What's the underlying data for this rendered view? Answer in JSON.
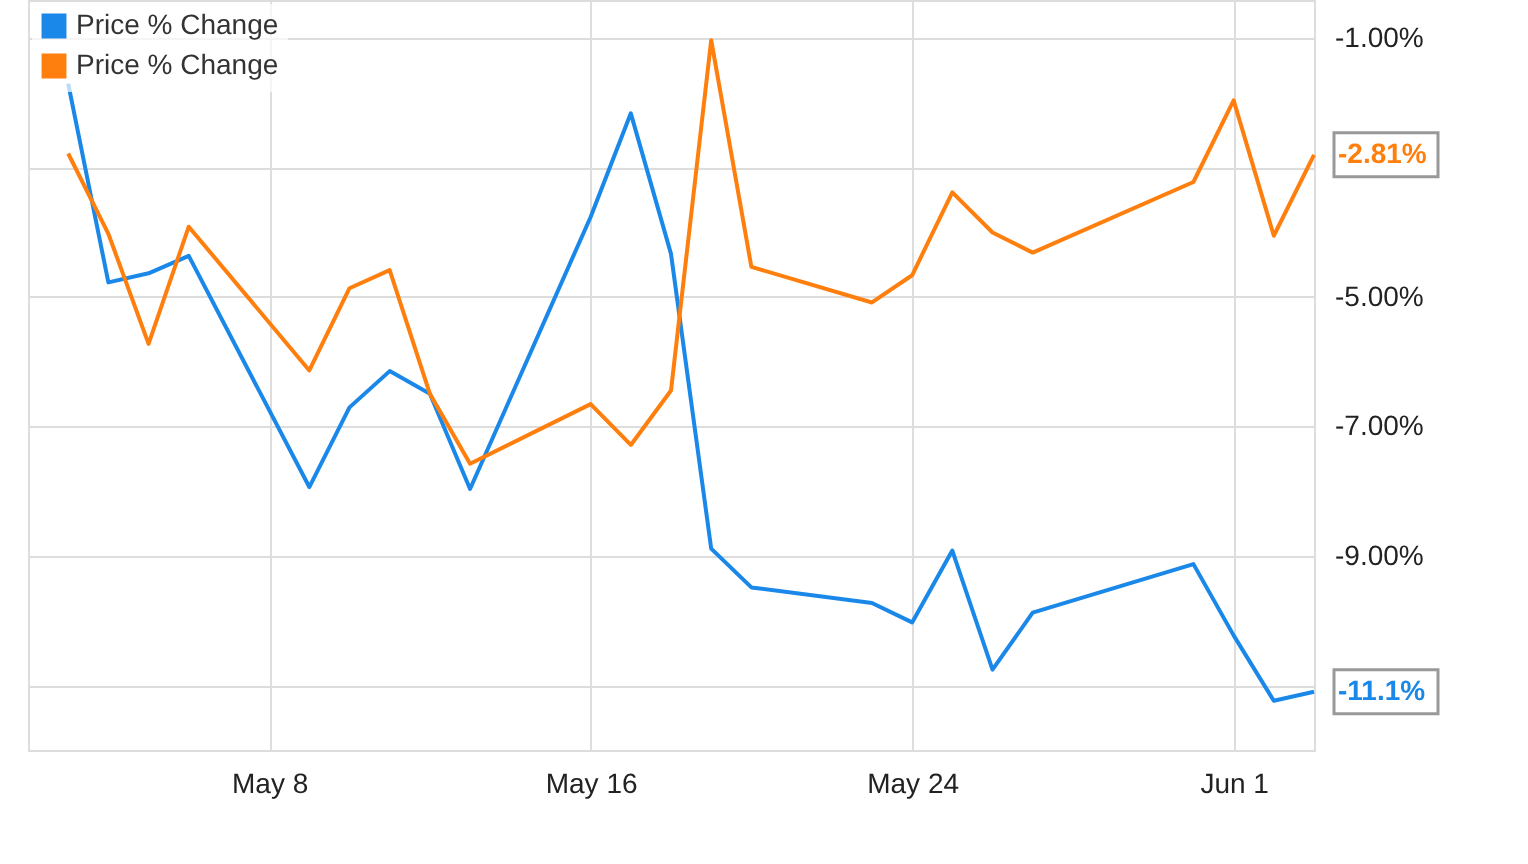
{
  "chart_data": {
    "type": "line",
    "x": [
      "--05-03",
      "--05-04",
      "--05-05",
      "--05-06",
      "--05-09",
      "--05-10",
      "--05-11",
      "--05-12",
      "--05-13",
      "--05-16",
      "--05-17",
      "--05-18",
      "--05-19",
      "--05-20",
      "--05-23",
      "--05-24",
      "--05-25",
      "--05-26",
      "--05-27",
      "--05-31",
      "--06-01",
      "--06-02",
      "--06-03"
    ],
    "series": [
      {
        "name": "Price % Change",
        "color": "#1a88e8",
        "values": [
          -1.71,
          -4.78,
          -4.64,
          -4.37,
          -7.94,
          -6.71,
          -6.15,
          -6.5,
          -7.97,
          -3.77,
          -2.17,
          -4.34,
          -8.89,
          -9.49,
          -9.73,
          -10.03,
          -8.92,
          -10.76,
          -9.88,
          -9.13,
          -10.23,
          -11.24,
          -11.1
        ],
        "value_labels": [
          null,
          null,
          null,
          null,
          null,
          null,
          null,
          null,
          null,
          null,
          null,
          null,
          null,
          null,
          null,
          null,
          null,
          null,
          null,
          null,
          null,
          null,
          "-11.1%"
        ]
      },
      {
        "name": "Price % Change",
        "color": "#ff7f0e",
        "values": [
          -2.79,
          -4.03,
          -5.73,
          -3.92,
          -6.14,
          -4.87,
          -4.59,
          -6.5,
          -7.58,
          -6.66,
          -7.29,
          -6.45,
          -1.04,
          -4.54,
          -5.09,
          -4.67,
          -3.39,
          -4.01,
          -4.32,
          -3.23,
          -1.97,
          -4.06,
          -2.81
        ],
        "value_labels": [
          null,
          null,
          null,
          null,
          null,
          null,
          null,
          null,
          null,
          null,
          null,
          null,
          null,
          null,
          null,
          null,
          null,
          null,
          null,
          null,
          null,
          null,
          "-2.81%"
        ]
      }
    ],
    "xlim": [
      "--05-02",
      "--06-03"
    ],
    "xticks": [
      {
        "value": "--05-08",
        "label": "May 8"
      },
      {
        "value": "--05-16",
        "label": "May 16"
      },
      {
        "value": "--05-24",
        "label": "May 24"
      },
      {
        "value": "--06-01",
        "label": "Jun 1"
      }
    ],
    "ylim": [
      -12.0,
      -0.42
    ],
    "yticks": [
      {
        "value": -1,
        "label": "-1.00%"
      },
      {
        "value": -3,
        "label": null
      },
      {
        "value": -5,
        "label": "-5.00%"
      },
      {
        "value": -7,
        "label": "-7.00%"
      },
      {
        "value": -9,
        "label": "-9.00%"
      },
      {
        "value": -11,
        "label": null
      }
    ],
    "grid": true,
    "legend": "top left",
    "marker": "none",
    "line_style": "solid"
  }
}
